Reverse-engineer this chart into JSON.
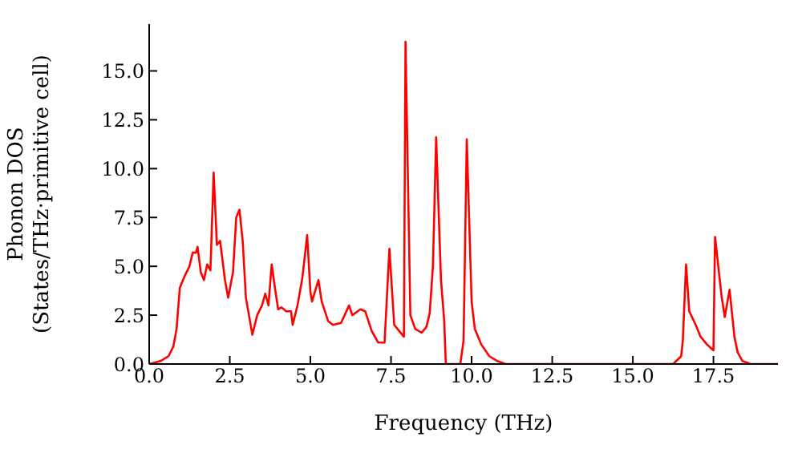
{
  "chart_data": {
    "type": "line",
    "xlabel": "Frequency (THz)",
    "ylabel": "Phonon DOS\n(States/THz·primitive cell)",
    "x": [
      0,
      0.35,
      0.6,
      0.75,
      0.85,
      0.95,
      1.1,
      1.25,
      1.35,
      1.45,
      1.5,
      1.6,
      1.7,
      1.8,
      1.9,
      2.0,
      2.1,
      2.2,
      2.35,
      2.45,
      2.6,
      2.7,
      2.8,
      2.9,
      3.0,
      3.2,
      3.35,
      3.5,
      3.6,
      3.7,
      3.8,
      3.9,
      4.0,
      4.1,
      4.25,
      4.4,
      4.45,
      4.6,
      4.75,
      4.9,
      5.0,
      5.05,
      5.25,
      5.35,
      5.55,
      5.7,
      5.95,
      6.2,
      6.3,
      6.55,
      6.7,
      6.9,
      7.1,
      7.3,
      7.45,
      7.6,
      7.75,
      7.9,
      7.95,
      8.1,
      8.25,
      8.45,
      8.6,
      8.7,
      8.8,
      8.9,
      9.05,
      9.15,
      9.2,
      9.65,
      9.75,
      9.85,
      10.0,
      10.1,
      10.3,
      10.55,
      10.8,
      11.05,
      16.25,
      16.5,
      16.55,
      16.65,
      16.75,
      16.95,
      17.1,
      17.3,
      17.5,
      17.55,
      17.75,
      17.85,
      18.0,
      18.15,
      18.25,
      18.4,
      18.65,
      19.5
    ],
    "series": [
      {
        "color": "#ff0000",
        "values": [
          0,
          0.15,
          0.4,
          0.9,
          1.8,
          3.9,
          4.5,
          5.0,
          5.7,
          5.7,
          6.0,
          4.7,
          4.3,
          5.1,
          4.8,
          9.8,
          6.1,
          6.3,
          4.3,
          3.4,
          4.7,
          7.5,
          7.9,
          6.3,
          3.4,
          1.5,
          2.5,
          3.0,
          3.6,
          3.0,
          5.1,
          3.9,
          2.8,
          2.9,
          2.7,
          2.7,
          2.0,
          3.0,
          4.4,
          6.6,
          3.7,
          3.2,
          4.3,
          3.2,
          2.2,
          2.0,
          2.1,
          3.0,
          2.5,
          2.8,
          2.7,
          1.7,
          1.1,
          1.1,
          5.9,
          2.0,
          1.7,
          1.4,
          16.5,
          2.5,
          1.8,
          1.6,
          1.9,
          2.6,
          5.0,
          11.6,
          4.3,
          2.2,
          0,
          0,
          1.2,
          11.5,
          3.2,
          1.8,
          1.0,
          0.4,
          0.15,
          0,
          0,
          0.4,
          1.2,
          5.1,
          2.7,
          2.0,
          1.4,
          1.0,
          0.7,
          6.5,
          3.5,
          2.4,
          3.8,
          1.4,
          0.6,
          0.15,
          0,
          0
        ]
      }
    ],
    "xlim": [
      0,
      19.5
    ],
    "ylim": [
      0,
      17.4
    ],
    "xticks": [
      {
        "value": 0,
        "label": "0.0"
      },
      {
        "value": 2.5,
        "label": "2.5"
      },
      {
        "value": 5,
        "label": "5.0"
      },
      {
        "value": 7.5,
        "label": "7.5"
      },
      {
        "value": 10,
        "label": "10.0"
      },
      {
        "value": 12.5,
        "label": "12.5"
      },
      {
        "value": 15,
        "label": "15.0"
      },
      {
        "value": 17.5,
        "label": "17.5"
      }
    ],
    "yticks": [
      {
        "value": 0,
        "label": "0.0"
      },
      {
        "value": 2.5,
        "label": "2.5"
      },
      {
        "value": 5,
        "label": "5.0"
      },
      {
        "value": 7.5,
        "label": "7.5"
      },
      {
        "value": 10,
        "label": "10.0"
      },
      {
        "value": 12.5,
        "label": "12.5"
      },
      {
        "value": 15,
        "label": "15.0"
      }
    ],
    "marker": "none",
    "line_style": "solid"
  }
}
